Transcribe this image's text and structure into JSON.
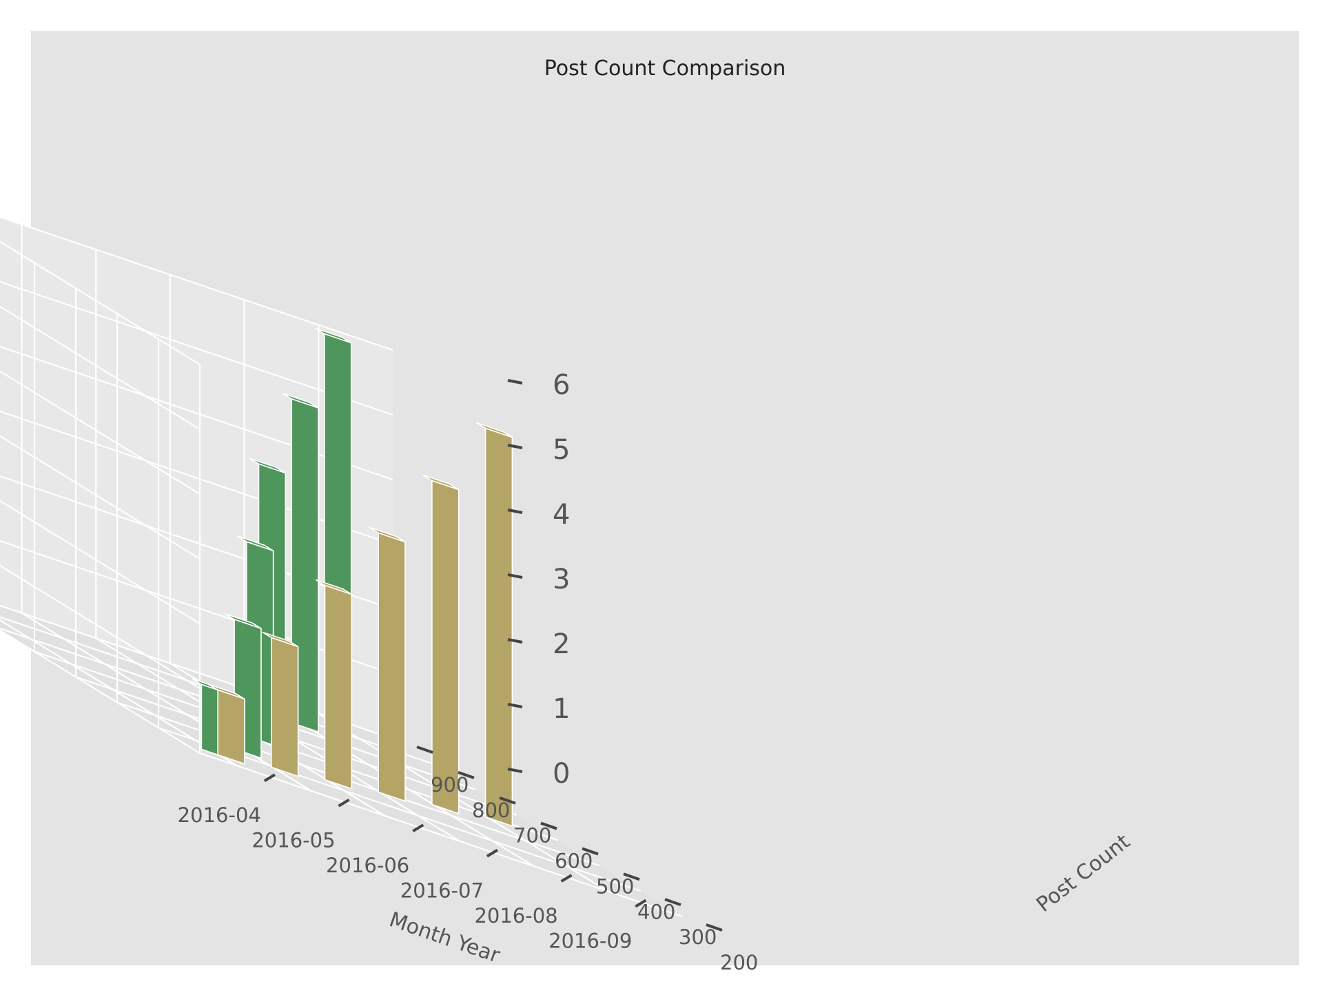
{
  "chart_data": {
    "type": "bar3d",
    "title": "Post Count Comparison",
    "xlabel": "Month Year",
    "ylabel": "Post Count",
    "zlabel": "",
    "x_categories": [
      "2016-04",
      "2016-05",
      "2016-06",
      "2016-07",
      "2016-08",
      "2016-09"
    ],
    "y_ticks": [
      "200",
      "300",
      "400",
      "500",
      "600",
      "700",
      "800",
      "900"
    ],
    "z_ticks": [
      "0",
      "1",
      "2",
      "3",
      "4",
      "5",
      "6"
    ],
    "ylim": [
      200,
      900
    ],
    "zlim": [
      0,
      6
    ],
    "grid": true,
    "series": [
      {
        "color": "#4e965c",
        "bars": [
          {
            "month": "2016-04",
            "post_count": 250,
            "value": 1.0
          },
          {
            "month": "2016-05",
            "post_count": 350,
            "value": 2.0
          },
          {
            "month": "2016-06",
            "post_count": 500,
            "value": 3.0
          },
          {
            "month": "2016-07",
            "post_count": 650,
            "value": 4.0
          },
          {
            "month": "2016-08",
            "post_count": 750,
            "value": 5.0
          },
          {
            "month": "2016-09",
            "post_count": 850,
            "value": 6.0
          }
        ]
      },
      {
        "color": "#b4a466",
        "bars": [
          {
            "month": "2016-04",
            "post_count": 250,
            "value": 1.0
          },
          {
            "month": "2016-05",
            "post_count": 300,
            "value": 2.0
          },
          {
            "month": "2016-06",
            "post_count": 350,
            "value": 3.0
          },
          {
            "month": "2016-07",
            "post_count": 400,
            "value": 4.0
          },
          {
            "month": "2016-08",
            "post_count": 450,
            "value": 5.0
          },
          {
            "month": "2016-09",
            "post_count": 500,
            "value": 6.0
          }
        ]
      }
    ],
    "colors": {
      "figure_background": "#e4e4e4",
      "pane_left": "#e6e6e6",
      "pane_back": "#e8e8e8",
      "pane_floor": "#e1e1e1",
      "grid": "#ffffff"
    }
  }
}
